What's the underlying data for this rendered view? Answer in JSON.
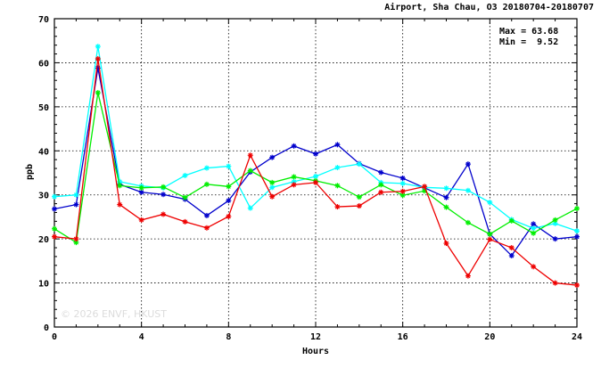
{
  "chart_data": {
    "type": "line",
    "title": "Airport, Sha Chau, O3 20180704-20180707",
    "xlabel": "Hours",
    "ylabel": "ppb",
    "xlim": [
      0,
      24
    ],
    "ylim": [
      0,
      70
    ],
    "x_ticks": [
      0,
      4,
      8,
      12,
      16,
      20,
      24
    ],
    "y_ticks": [
      0,
      10,
      20,
      30,
      40,
      50,
      60,
      70
    ],
    "grid": true,
    "stats": {
      "max_label": "Max = 63.68",
      "min_label": "Min =  9.52"
    },
    "watermark": "© 2026  ENVF, HKUST",
    "x": [
      0,
      1,
      2,
      3,
      4,
      5,
      6,
      7,
      8,
      9,
      10,
      11,
      12,
      13,
      14,
      15,
      16,
      17,
      18,
      19,
      20,
      21,
      22,
      23,
      24
    ],
    "series": [
      {
        "color": "#0000cc",
        "values": [
          26.8,
          27.8,
          58.8,
          32.4,
          30.6,
          30.1,
          29.0,
          25.3,
          28.7,
          35.2,
          38.5,
          41.1,
          39.3,
          41.4,
          37.1,
          35.1,
          33.8,
          31.6,
          29.4,
          37.0,
          21.1,
          16.2,
          23.4,
          20.0,
          20.5
        ]
      },
      {
        "color": "#00ffff",
        "values": [
          29.6,
          30.0,
          63.7,
          33.0,
          32.0,
          31.6,
          34.4,
          36.1,
          36.5,
          27.0,
          31.7,
          33.0,
          34.2,
          36.2,
          37.0,
          32.8,
          32.6,
          31.7,
          31.5,
          31.0,
          28.3,
          24.4,
          22.4,
          23.5,
          21.8
        ]
      },
      {
        "color": "#00ee00",
        "values": [
          22.3,
          19.2,
          53.2,
          32.1,
          31.6,
          31.8,
          29.4,
          32.4,
          31.9,
          35.5,
          32.8,
          34.1,
          33.2,
          32.1,
          29.5,
          32.3,
          29.9,
          30.9,
          27.2,
          23.7,
          21.1,
          24.1,
          21.3,
          24.3,
          26.9
        ]
      },
      {
        "color": "#ee0000",
        "values": [
          20.5,
          20.0,
          60.9,
          27.8,
          24.3,
          25.6,
          23.9,
          22.5,
          25.1,
          39.0,
          29.6,
          32.3,
          32.8,
          27.3,
          27.5,
          30.6,
          30.8,
          31.9,
          19.0,
          11.6,
          19.9,
          18.0,
          13.7,
          10.0,
          9.5
        ]
      }
    ]
  }
}
